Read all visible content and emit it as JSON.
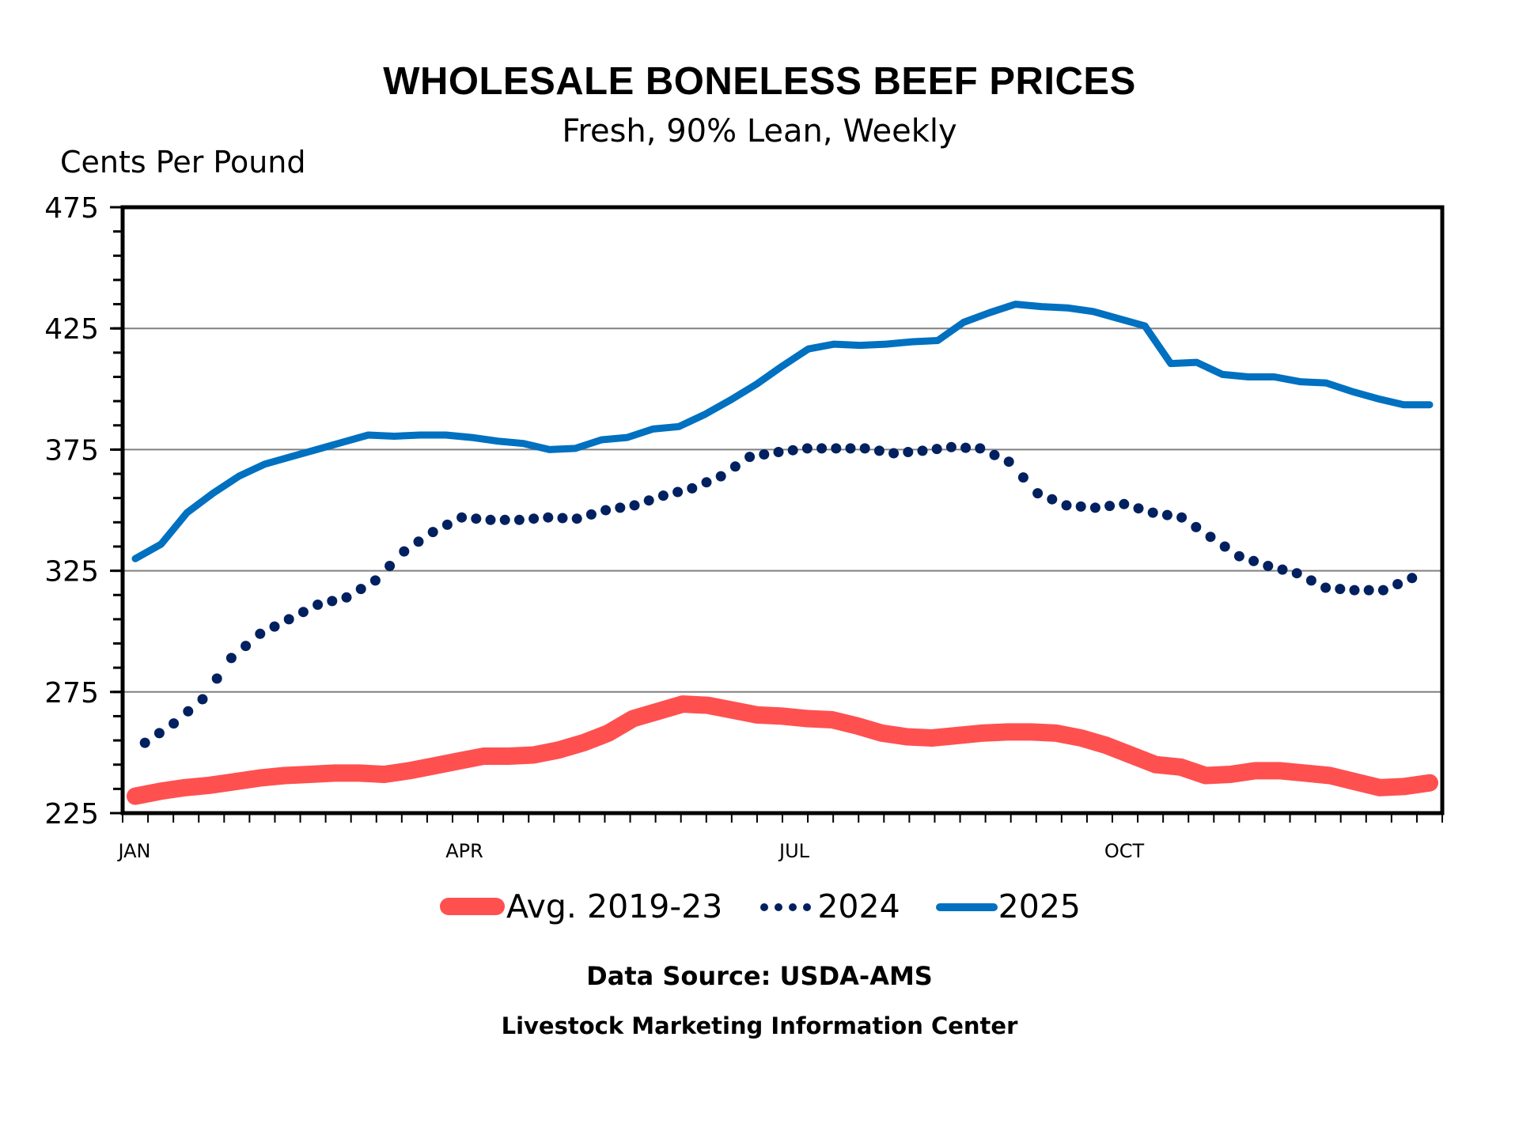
{
  "chart_data": {
    "type": "line",
    "title": "WHOLESALE BONELESS BEEF PRICES",
    "subtitle": "Fresh, 90% Lean, Weekly",
    "ylabel": "Cents Per Pound",
    "xlabel": "",
    "ylim": [
      225,
      475
    ],
    "yticks": [
      225,
      275,
      325,
      375,
      425,
      475
    ],
    "ytick_labels": [
      "225",
      "275",
      "325",
      "375",
      "425",
      "475"
    ],
    "y_minor_step": 10,
    "grid": true,
    "x_weeks": 52,
    "xtick_labels": [
      {
        "label": "JAN",
        "week": 1
      },
      {
        "label": "APR",
        "week": 14
      },
      {
        "label": "JUL",
        "week": 27
      },
      {
        "label": "OCT",
        "week": 40
      }
    ],
    "legend_position": "bottom",
    "series": [
      {
        "name": "Avg. 2019-23",
        "color": "#ff5050",
        "style": "thick-solid",
        "values": [
          232,
          234,
          235.5,
          236.5,
          238,
          239.5,
          240.5,
          241,
          241.5,
          241.5,
          241,
          242.5,
          244.5,
          246.5,
          248.5,
          248.5,
          249,
          251,
          254,
          258,
          264,
          267,
          270,
          269.5,
          267.5,
          265.5,
          265,
          264,
          263.5,
          261,
          258,
          256.5,
          256,
          257,
          258,
          258.5,
          258.5,
          258,
          256,
          253,
          249,
          245,
          244,
          240.5,
          241,
          242.5,
          242.5,
          241.5,
          240.5,
          238,
          235.5,
          236,
          237.5
        ]
      },
      {
        "name": "2024",
        "color": "#002060",
        "style": "dotted",
        "values": [
          254,
          262,
          272,
          289,
          299,
          305,
          311,
          314,
          321,
          333,
          341,
          347,
          346,
          346,
          347,
          346.5,
          350,
          352,
          356,
          359,
          364,
          372,
          374,
          375.5,
          375.5,
          375.5,
          373.5,
          374.5,
          376,
          375.5,
          370,
          357,
          352,
          351,
          352.5,
          349,
          347,
          339,
          331,
          327,
          324,
          318,
          317,
          317,
          322
        ]
      },
      {
        "name": "2025",
        "color": "#0070c0",
        "style": "solid",
        "values": [
          330,
          336,
          349,
          357,
          364,
          369,
          372,
          375,
          378,
          381,
          380.5,
          381,
          381,
          380,
          378.5,
          377.5,
          375,
          375.5,
          379,
          380,
          383.5,
          384.5,
          389.5,
          395.5,
          402,
          409.5,
          416.5,
          418.5,
          418,
          418.5,
          419.5,
          420,
          427.5,
          431.5,
          435,
          434,
          433.5,
          432,
          429,
          426,
          410.5,
          411,
          406,
          405,
          405,
          403,
          402.5,
          399,
          396,
          393.5,
          393.5
        ]
      }
    ]
  },
  "footer": {
    "source": "Data Source:  USDA-AMS",
    "org": "Livestock Marketing Information Center"
  }
}
